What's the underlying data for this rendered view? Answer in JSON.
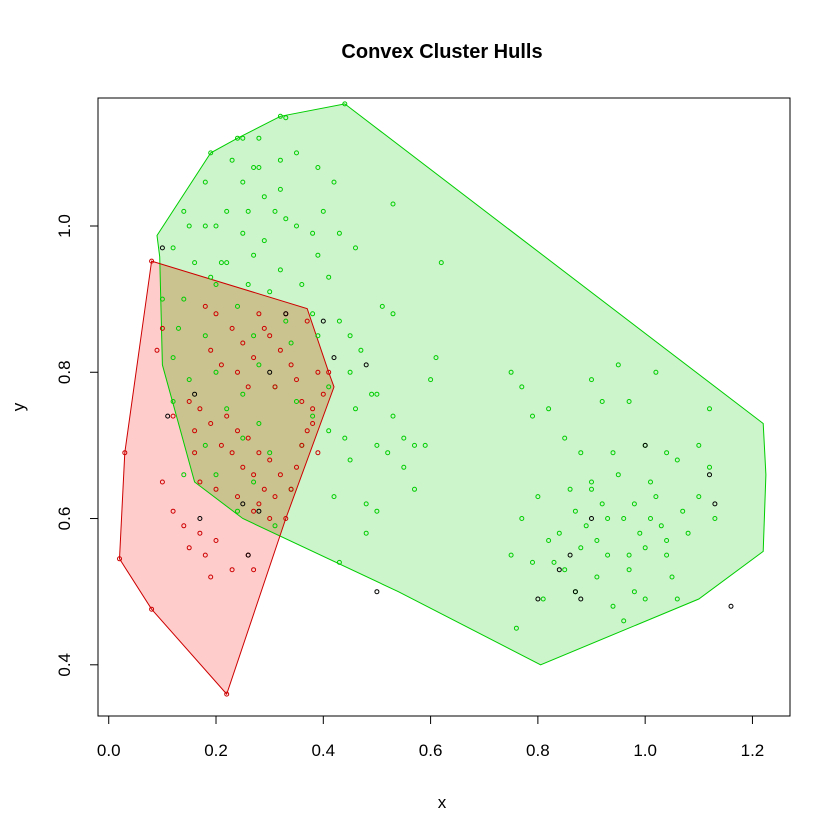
{
  "chart_data": {
    "type": "scatter",
    "title": "Convex Cluster Hulls",
    "xlabel": "x",
    "ylabel": "y",
    "xlim": [
      -0.02,
      1.27
    ],
    "ylim": [
      0.33,
      1.175
    ],
    "x_ticks": [
      0.0,
      0.2,
      0.4,
      0.6,
      0.8,
      1.0,
      1.2
    ],
    "x_tick_labels": [
      "0.0",
      "0.2",
      "0.4",
      "0.6",
      "0.8",
      "1.0",
      "1.2"
    ],
    "y_ticks": [
      0.4,
      0.6,
      0.8,
      1.0
    ],
    "y_tick_labels": [
      "0.4",
      "0.6",
      "0.8",
      "1.0"
    ],
    "grid": false,
    "colors": {
      "green": "#00cd00",
      "green_fill": "#ccf5cc",
      "red": "#cd0000",
      "red_fill": "#ffcccc",
      "overlap_fill": "#cbc38f",
      "black": "#000000"
    },
    "hulls": [
      {
        "name": "green",
        "points": [
          [
            0.09,
            0.987
          ],
          [
            0.19,
            1.1
          ],
          [
            0.24,
            1.12
          ],
          [
            0.32,
            1.15
          ],
          [
            0.44,
            1.167
          ],
          [
            1.22,
            0.73
          ],
          [
            1.225,
            0.66
          ],
          [
            1.22,
            0.555
          ],
          [
            1.1,
            0.49
          ],
          [
            0.805,
            0.4
          ],
          [
            0.54,
            0.5
          ],
          [
            0.25,
            0.6
          ],
          [
            0.16,
            0.65
          ],
          [
            0.1,
            0.81
          ],
          [
            0.095,
            0.958
          ]
        ]
      },
      {
        "name": "red",
        "points": [
          [
            0.08,
            0.952
          ],
          [
            0.37,
            0.887
          ],
          [
            0.41,
            0.8
          ],
          [
            0.42,
            0.78
          ],
          [
            0.33,
            0.6
          ],
          [
            0.22,
            0.36
          ],
          [
            0.08,
            0.476
          ],
          [
            0.02,
            0.545
          ],
          [
            0.03,
            0.69
          ]
        ]
      }
    ],
    "series": [
      {
        "name": "green",
        "color": "#00cd00",
        "points": [
          [
            0.44,
            1.167
          ],
          [
            0.32,
            1.15
          ],
          [
            0.33,
            1.148
          ],
          [
            0.24,
            1.12
          ],
          [
            0.25,
            1.12
          ],
          [
            0.28,
            1.12
          ],
          [
            0.19,
            1.1
          ],
          [
            0.23,
            1.09
          ],
          [
            0.32,
            1.09
          ],
          [
            0.35,
            1.1
          ],
          [
            0.27,
            1.08
          ],
          [
            0.28,
            1.08
          ],
          [
            0.39,
            1.08
          ],
          [
            0.25,
            1.06
          ],
          [
            0.32,
            1.05
          ],
          [
            0.18,
            1.06
          ],
          [
            0.29,
            1.04
          ],
          [
            0.42,
            1.06
          ],
          [
            0.26,
            1.02
          ],
          [
            0.31,
            1.02
          ],
          [
            0.35,
            1.0
          ],
          [
            0.4,
            1.02
          ],
          [
            0.22,
            1.02
          ],
          [
            0.14,
            1.02
          ],
          [
            0.15,
            1.0
          ],
          [
            0.2,
            1.0
          ],
          [
            0.18,
            1.0
          ],
          [
            0.25,
            0.99
          ],
          [
            0.29,
            0.98
          ],
          [
            0.33,
            1.01
          ],
          [
            0.38,
            0.99
          ],
          [
            0.43,
            0.99
          ],
          [
            0.53,
            1.03
          ],
          [
            0.12,
            0.97
          ],
          [
            0.16,
            0.95
          ],
          [
            0.21,
            0.95
          ],
          [
            0.22,
            0.95
          ],
          [
            0.27,
            0.96
          ],
          [
            0.32,
            0.94
          ],
          [
            0.39,
            0.96
          ],
          [
            0.46,
            0.97
          ],
          [
            0.19,
            0.93
          ],
          [
            0.2,
            0.92
          ],
          [
            0.26,
            0.92
          ],
          [
            0.3,
            0.91
          ],
          [
            0.36,
            0.92
          ],
          [
            0.41,
            0.93
          ],
          [
            0.62,
            0.95
          ],
          [
            0.1,
            0.9
          ],
          [
            0.14,
            0.9
          ],
          [
            0.24,
            0.89
          ],
          [
            0.33,
            0.87
          ],
          [
            0.38,
            0.88
          ],
          [
            0.43,
            0.87
          ],
          [
            0.51,
            0.89
          ],
          [
            0.53,
            0.88
          ],
          [
            0.13,
            0.86
          ],
          [
            0.18,
            0.85
          ],
          [
            0.27,
            0.85
          ],
          [
            0.34,
            0.84
          ],
          [
            0.39,
            0.85
          ],
          [
            0.45,
            0.85
          ],
          [
            0.47,
            0.83
          ],
          [
            0.12,
            0.82
          ],
          [
            0.2,
            0.8
          ],
          [
            0.28,
            0.81
          ],
          [
            0.31,
            0.78
          ],
          [
            0.45,
            0.8
          ],
          [
            0.49,
            0.77
          ],
          [
            0.6,
            0.79
          ],
          [
            0.61,
            0.82
          ],
          [
            0.15,
            0.79
          ],
          [
            0.25,
            0.77
          ],
          [
            0.35,
            0.76
          ],
          [
            0.41,
            0.78
          ],
          [
            0.46,
            0.75
          ],
          [
            0.5,
            0.77
          ],
          [
            0.53,
            0.74
          ],
          [
            0.12,
            0.76
          ],
          [
            0.22,
            0.75
          ],
          [
            0.28,
            0.73
          ],
          [
            0.38,
            0.74
          ],
          [
            0.41,
            0.72
          ],
          [
            0.44,
            0.71
          ],
          [
            0.5,
            0.7
          ],
          [
            0.55,
            0.71
          ],
          [
            0.57,
            0.7
          ],
          [
            0.59,
            0.7
          ],
          [
            0.18,
            0.7
          ],
          [
            0.25,
            0.71
          ],
          [
            0.3,
            0.69
          ],
          [
            0.36,
            0.7
          ],
          [
            0.45,
            0.68
          ],
          [
            0.52,
            0.69
          ],
          [
            0.55,
            0.67
          ],
          [
            0.57,
            0.64
          ],
          [
            0.14,
            0.66
          ],
          [
            0.2,
            0.66
          ],
          [
            0.27,
            0.65
          ],
          [
            0.34,
            0.64
          ],
          [
            0.42,
            0.63
          ],
          [
            0.48,
            0.62
          ],
          [
            0.5,
            0.61
          ],
          [
            0.24,
            0.61
          ],
          [
            0.31,
            0.59
          ],
          [
            0.48,
            0.58
          ],
          [
            0.43,
            0.54
          ],
          [
            0.75,
            0.8
          ],
          [
            0.77,
            0.78
          ],
          [
            0.79,
            0.74
          ],
          [
            0.82,
            0.75
          ],
          [
            0.85,
            0.71
          ],
          [
            0.88,
            0.69
          ],
          [
            0.9,
            0.79
          ],
          [
            0.92,
            0.76
          ],
          [
            0.95,
            0.81
          ],
          [
            0.97,
            0.76
          ],
          [
            1.02,
            0.8
          ],
          [
            1.0,
            0.7
          ],
          [
            1.04,
            0.69
          ],
          [
            1.1,
            0.7
          ],
          [
            1.12,
            0.75
          ],
          [
            0.75,
            0.55
          ],
          [
            0.77,
            0.6
          ],
          [
            0.79,
            0.54
          ],
          [
            0.8,
            0.63
          ],
          [
            0.82,
            0.57
          ],
          [
            0.84,
            0.58
          ],
          [
            0.86,
            0.64
          ],
          [
            0.87,
            0.61
          ],
          [
            0.89,
            0.59
          ],
          [
            0.9,
            0.65
          ],
          [
            0.91,
            0.57
          ],
          [
            0.92,
            0.62
          ],
          [
            0.93,
            0.55
          ],
          [
            0.94,
            0.69
          ],
          [
            0.95,
            0.66
          ],
          [
            0.96,
            0.6
          ],
          [
            0.97,
            0.53
          ],
          [
            0.98,
            0.62
          ],
          [
            0.99,
            0.58
          ],
          [
            1.0,
            0.56
          ],
          [
            1.01,
            0.65
          ],
          [
            1.02,
            0.63
          ],
          [
            1.03,
            0.59
          ],
          [
            1.04,
            0.57
          ],
          [
            1.05,
            0.52
          ],
          [
            1.06,
            0.68
          ],
          [
            1.07,
            0.61
          ],
          [
            1.08,
            0.58
          ],
          [
            1.1,
            0.63
          ],
          [
            1.12,
            0.67
          ],
          [
            1.13,
            0.6
          ],
          [
            0.85,
            0.53
          ],
          [
            0.88,
            0.56
          ],
          [
            0.91,
            0.52
          ],
          [
            0.94,
            0.48
          ],
          [
            0.96,
            0.46
          ],
          [
            0.98,
            0.5
          ],
          [
            1.0,
            0.49
          ],
          [
            1.06,
            0.49
          ],
          [
            0.76,
            0.45
          ],
          [
            0.81,
            0.49
          ],
          [
            0.83,
            0.54
          ],
          [
            0.87,
            0.5
          ],
          [
            0.9,
            0.64
          ],
          [
            0.93,
            0.6
          ],
          [
            0.97,
            0.55
          ],
          [
            1.01,
            0.6
          ],
          [
            1.04,
            0.55
          ]
        ]
      },
      {
        "name": "red",
        "color": "#cd0000",
        "points": [
          [
            0.08,
            0.952
          ],
          [
            0.09,
            0.83
          ],
          [
            0.1,
            0.86
          ],
          [
            0.12,
            0.74
          ],
          [
            0.15,
            0.76
          ],
          [
            0.16,
            0.72
          ],
          [
            0.18,
            0.89
          ],
          [
            0.2,
            0.88
          ],
          [
            0.19,
            0.83
          ],
          [
            0.21,
            0.81
          ],
          [
            0.23,
            0.86
          ],
          [
            0.24,
            0.8
          ],
          [
            0.25,
            0.84
          ],
          [
            0.26,
            0.78
          ],
          [
            0.27,
            0.82
          ],
          [
            0.28,
            0.88
          ],
          [
            0.29,
            0.86
          ],
          [
            0.3,
            0.85
          ],
          [
            0.31,
            0.78
          ],
          [
            0.32,
            0.83
          ],
          [
            0.33,
            0.88
          ],
          [
            0.34,
            0.81
          ],
          [
            0.35,
            0.79
          ],
          [
            0.36,
            0.76
          ],
          [
            0.37,
            0.87
          ],
          [
            0.38,
            0.73
          ],
          [
            0.39,
            0.8
          ],
          [
            0.4,
            0.77
          ],
          [
            0.41,
            0.8
          ],
          [
            0.17,
            0.75
          ],
          [
            0.19,
            0.73
          ],
          [
            0.21,
            0.7
          ],
          [
            0.22,
            0.74
          ],
          [
            0.23,
            0.69
          ],
          [
            0.24,
            0.72
          ],
          [
            0.25,
            0.67
          ],
          [
            0.26,
            0.71
          ],
          [
            0.27,
            0.66
          ],
          [
            0.28,
            0.69
          ],
          [
            0.29,
            0.64
          ],
          [
            0.3,
            0.68
          ],
          [
            0.31,
            0.63
          ],
          [
            0.32,
            0.66
          ],
          [
            0.33,
            0.6
          ],
          [
            0.34,
            0.64
          ],
          [
            0.35,
            0.67
          ],
          [
            0.36,
            0.7
          ],
          [
            0.37,
            0.72
          ],
          [
            0.38,
            0.75
          ],
          [
            0.39,
            0.69
          ],
          [
            0.1,
            0.65
          ],
          [
            0.12,
            0.61
          ],
          [
            0.14,
            0.59
          ],
          [
            0.15,
            0.56
          ],
          [
            0.17,
            0.58
          ],
          [
            0.18,
            0.55
          ],
          [
            0.19,
            0.52
          ],
          [
            0.2,
            0.57
          ],
          [
            0.23,
            0.53
          ],
          [
            0.26,
            0.55
          ],
          [
            0.27,
            0.53
          ],
          [
            0.28,
            0.62
          ],
          [
            0.3,
            0.6
          ],
          [
            0.22,
            0.36
          ],
          [
            0.08,
            0.476
          ],
          [
            0.02,
            0.545
          ],
          [
            0.03,
            0.69
          ],
          [
            0.17,
            0.65
          ],
          [
            0.24,
            0.63
          ],
          [
            0.27,
            0.61
          ],
          [
            0.16,
            0.69
          ],
          [
            0.2,
            0.64
          ]
        ]
      },
      {
        "name": "black",
        "color": "#000000",
        "points": [
          [
            0.1,
            0.97
          ],
          [
            0.11,
            0.74
          ],
          [
            0.16,
            0.77
          ],
          [
            0.17,
            0.6
          ],
          [
            0.25,
            0.62
          ],
          [
            0.26,
            0.55
          ],
          [
            0.28,
            0.61
          ],
          [
            0.3,
            0.8
          ],
          [
            0.33,
            0.88
          ],
          [
            0.4,
            0.87
          ],
          [
            0.42,
            0.82
          ],
          [
            0.48,
            0.81
          ],
          [
            0.5,
            0.5
          ],
          [
            0.8,
            0.49
          ],
          [
            0.84,
            0.53
          ],
          [
            0.86,
            0.55
          ],
          [
            0.87,
            0.5
          ],
          [
            0.88,
            0.49
          ],
          [
            0.9,
            0.6
          ],
          [
            1.0,
            0.7
          ],
          [
            1.12,
            0.66
          ],
          [
            1.13,
            0.62
          ],
          [
            1.16,
            0.48
          ]
        ]
      }
    ]
  }
}
